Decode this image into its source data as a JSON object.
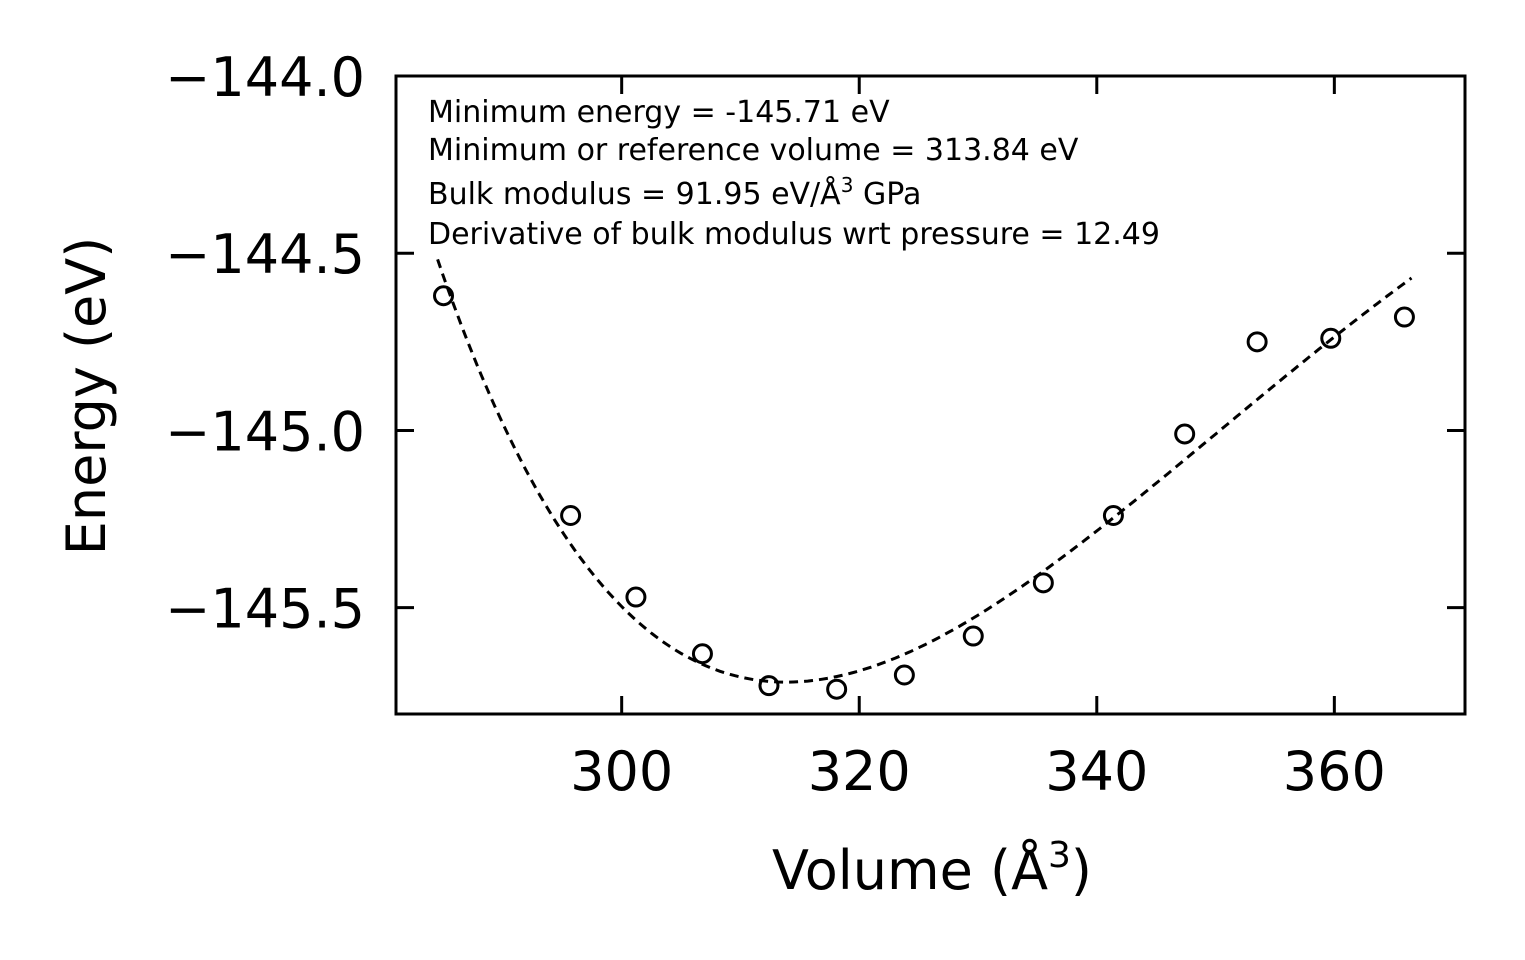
{
  "chart_data": {
    "type": "scatter",
    "title": "",
    "xlabel": "Volume (Å",
    "xlabel_sup": "3",
    "xlabel_end": ")",
    "ylabel": "Energy (eV)",
    "xlim": [
      281,
      371
    ],
    "ylim": [
      -145.8,
      -144.0
    ],
    "x_ticks": [
      300,
      320,
      340,
      360
    ],
    "x_tick_labels": [
      "300",
      "320",
      "340",
      "360"
    ],
    "y_ticks": [
      -144.0,
      -144.5,
      -145.0,
      -145.5
    ],
    "y_tick_labels": [
      "−144.0",
      "−144.5",
      "−145.0",
      "−145.5"
    ],
    "series": [
      {
        "name": "data",
        "marker": "open-circle",
        "x": [
          285.0,
          295.7,
          301.2,
          306.8,
          312.4,
          318.1,
          323.8,
          329.6,
          335.5,
          341.4,
          347.4,
          353.5,
          359.7,
          365.9
        ],
        "y": [
          -144.62,
          -145.24,
          -145.47,
          -145.63,
          -145.72,
          -145.73,
          -145.69,
          -145.58,
          -145.43,
          -145.24,
          -145.01,
          -144.75,
          -144.74,
          -144.68
        ]
      },
      {
        "name": "fit",
        "style": "dashed",
        "E0": -145.71,
        "V0": 313.84,
        "B": 91.95,
        "Bp": 12.49,
        "x_range": [
          284.5,
          366.5
        ]
      }
    ],
    "annotations": {
      "line1": "Minimum energy = -145.71 eV",
      "line2": "Minimum or reference volume = 313.84 eV",
      "line3_a": "Bulk modulus = 91.95 eV/Å",
      "line3_sup": "3",
      "line3_b": " GPa",
      "line4": "Derivative of bulk modulus wrt pressure = 12.49"
    }
  }
}
